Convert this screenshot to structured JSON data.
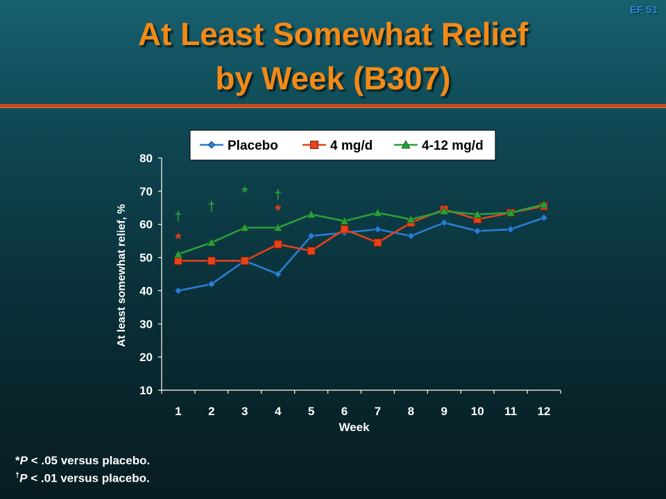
{
  "slide_id": "EF 51",
  "title_line1": "At Least Somewhat Relief",
  "title_line2": "by Week (B307)",
  "footnotes": {
    "star_sym": "*",
    "dagger_sym": "†",
    "p": "P",
    "star_text": " < .05 versus placebo.",
    "dagger_text": " < .01 versus placebo."
  },
  "colors": {
    "placebo": "#2a7fd4",
    "mg4": "#e8421a",
    "mg412": "#2aa03c",
    "title": "#f28a17"
  },
  "chart_data": {
    "type": "line",
    "title": "",
    "xlabel": "Week",
    "ylabel": "At least somewhat relief, %",
    "categories": [
      "1",
      "2",
      "3",
      "4",
      "5",
      "6",
      "7",
      "8",
      "9",
      "10",
      "11",
      "12"
    ],
    "ylim": [
      10,
      80
    ],
    "yticks": [
      10,
      20,
      30,
      40,
      50,
      60,
      70,
      80
    ],
    "legend_position": "top",
    "series": [
      {
        "name": "Placebo",
        "marker": "diamond",
        "color": "#2a7fd4",
        "values": [
          40,
          42,
          49,
          45,
          56.5,
          57.5,
          58.5,
          56.5,
          60.5,
          58,
          58.5,
          62
        ]
      },
      {
        "name": "4 mg/d",
        "marker": "square",
        "color": "#e8421a",
        "values": [
          49,
          49,
          49,
          54,
          52,
          58.5,
          54.5,
          60.5,
          64.5,
          61.5,
          63.5,
          65.5
        ]
      },
      {
        "name": "4-12 mg/d",
        "marker": "triangle",
        "color": "#2aa03c",
        "values": [
          51,
          54.5,
          59,
          59,
          63,
          61,
          63.5,
          61.5,
          64,
          63,
          63.5,
          66
        ]
      }
    ],
    "annotations": [
      {
        "week": "1",
        "value": 63,
        "text": "†",
        "color": "#2aa03c"
      },
      {
        "week": "1",
        "value": 56,
        "text": "*",
        "color": "#e8421a"
      },
      {
        "week": "2",
        "value": 66,
        "text": "†",
        "color": "#2aa03c"
      },
      {
        "week": "3",
        "value": 70,
        "text": "*",
        "color": "#2aa03c"
      },
      {
        "week": "4",
        "value": 69.5,
        "text": "†",
        "color": "#2aa03c"
      },
      {
        "week": "4",
        "value": 64.5,
        "text": "*",
        "color": "#e8421a"
      }
    ]
  }
}
